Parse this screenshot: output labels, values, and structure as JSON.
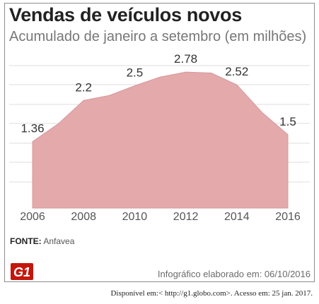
{
  "title": "Vendas de veículos novos",
  "subtitle": "Acumulado de janeiro a setembro (em milhões)",
  "source": {
    "label": "FONTE:",
    "name": "Anfavea"
  },
  "logo_text": "G1",
  "credit": "Infográfico elaborado em: 06/10/2016",
  "footer": "Disponível em:< http://g1.globo.com>. Acesso em: 25  jan. 2017.",
  "colors": {
    "area_fill": "#e3a9ab",
    "area_stroke": "#d99a9d",
    "grid": "#dddddd",
    "logo": "#c4170c"
  },
  "chart_data": {
    "type": "area",
    "title": "Vendas de veículos novos",
    "subtitle": "Acumulado de janeiro a setembro (em milhões)",
    "x": [
      2006,
      2007,
      2008,
      2009,
      2010,
      2011,
      2012,
      2013,
      2014,
      2015,
      2016
    ],
    "values": [
      1.36,
      1.72,
      2.2,
      2.3,
      2.5,
      2.68,
      2.78,
      2.76,
      2.52,
      1.95,
      1.5
    ],
    "data_labels": [
      {
        "x": 2006,
        "text": "1.36"
      },
      {
        "x": 2008,
        "text": "2.2"
      },
      {
        "x": 2010,
        "text": "2.5"
      },
      {
        "x": 2012,
        "text": "2.78"
      },
      {
        "x": 2014,
        "text": "2.52"
      },
      {
        "x": 2016,
        "text": "1.5"
      }
    ],
    "x_ticks": [
      2006,
      2008,
      2010,
      2012,
      2014,
      2016
    ],
    "xlim": [
      2006,
      2016
    ],
    "ylim": [
      0,
      3.2
    ],
    "xlabel": "",
    "ylabel": "",
    "grid": "horizontal",
    "legend": "none"
  }
}
